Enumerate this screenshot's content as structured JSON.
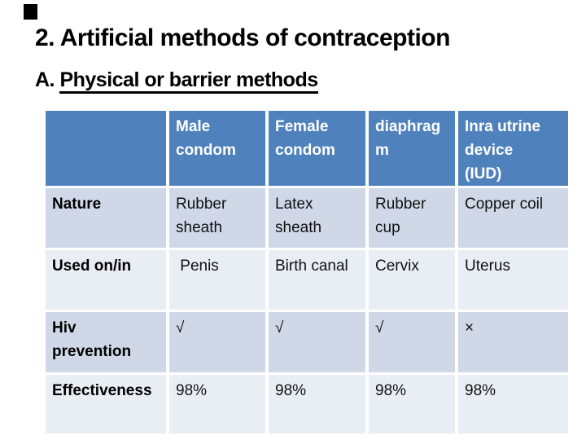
{
  "slide": {
    "title": "2. Artificial methods of contraception",
    "subtitle_prefix": "A. ",
    "subtitle_text": "Physical or barrier methods"
  },
  "table": {
    "columns": [
      "",
      "Male\ncondom",
      "Female\ncondom",
      "diaphrag\nm",
      "Inra utrine\ndevice\n(IUD)"
    ],
    "rows": [
      {
        "label": "Nature",
        "cells": [
          "Rubber\nsheath",
          "Latex\nsheath",
          "Rubber\ncup",
          "Copper coil"
        ]
      },
      {
        "label": "Used on/in",
        "cells": [
          " Penis",
          "Birth canal",
          "Cervix",
          "Uterus"
        ]
      },
      {
        "label": "Hiv\nprevention",
        "cells": [
          "√",
          "√",
          "√",
          "×"
        ]
      },
      {
        "label": "Effectiveness",
        "cells": [
          "98%",
          "98%",
          "98%",
          "98%"
        ]
      }
    ],
    "colors": {
      "header_bg": "#4f81bd",
      "header_text": "#ffffff",
      "band_dark": "#d0d8e8",
      "band_light": "#e9edf4"
    }
  }
}
